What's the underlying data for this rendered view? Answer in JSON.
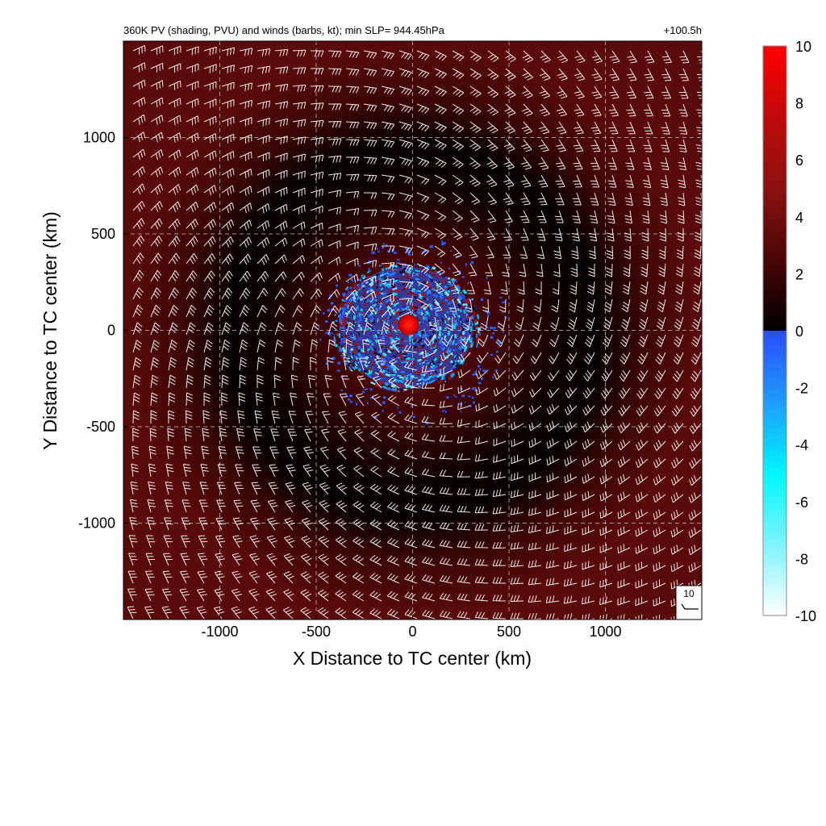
{
  "chart_data": {
    "type": "heatmap",
    "title": "360K PV (shading, PVU) and winds (barbs, kt); min SLP= 944.45hPa",
    "forecast_time": "+100.5h",
    "xlabel": "X Distance to TC center (km)",
    "ylabel": "Y Distance to TC center (km)",
    "xlim": [
      -1500,
      1500
    ],
    "ylim": [
      -1500,
      1500
    ],
    "x_ticks": [
      -1000,
      -500,
      0,
      500,
      1000
    ],
    "y_ticks": [
      -1000,
      -500,
      0,
      500,
      1000
    ],
    "x_tick_labels": [
      "-1000",
      "-500",
      "0",
      "500",
      "1000"
    ],
    "y_tick_labels": [
      "-1000",
      "-500",
      "0",
      "500",
      "1000"
    ],
    "grid": true,
    "colorbar": {
      "min": -10,
      "max": 10,
      "ticks": [
        10,
        8,
        6,
        4,
        2,
        0,
        -2,
        -4,
        -6,
        -8,
        -10
      ],
      "tick_labels": [
        "10",
        "8",
        "6",
        "4",
        "2",
        "0",
        "-2",
        "-4",
        "-6",
        "-8",
        "-10"
      ],
      "colors_positive": [
        "#000000",
        "#4a0606",
        "#8b1010",
        "#c00a0a",
        "#ff0000"
      ],
      "colors_negative": [
        "#2a4cff",
        "#1e9cff",
        "#00f6ff",
        "#7ff4ff",
        "#ffffff"
      ]
    },
    "features": {
      "center_pv_max": 10,
      "negative_pv_region_radius_km": 560,
      "low_pv_ring_radius_km": 900
    },
    "wind_barb_reference": {
      "label": "10",
      "speed_kt": 10
    }
  }
}
